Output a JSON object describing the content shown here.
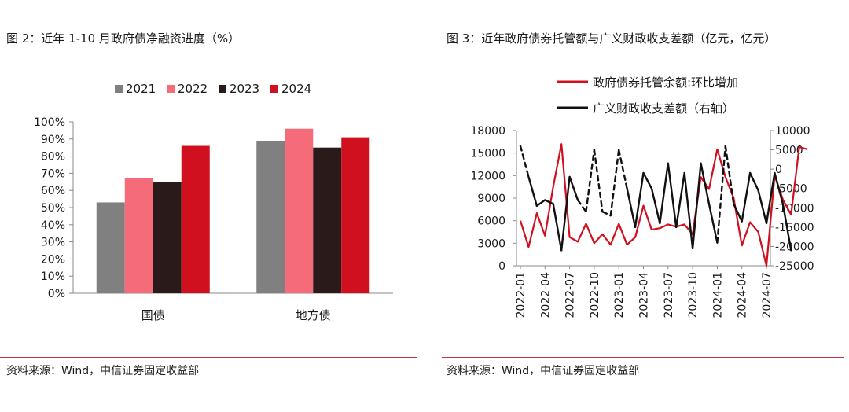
{
  "left": {
    "title": "图 2：近年 1-10 月政府债净融资进度（%）",
    "source": "资料来源：Wind，中信证券固定收益部",
    "chart_data": {
      "type": "bar",
      "categories": [
        "国债",
        "地方债"
      ],
      "series": [
        {
          "name": "2021",
          "color": "#808080",
          "values": [
            53,
            89
          ]
        },
        {
          "name": "2022",
          "color": "#f56b7a",
          "values": [
            67,
            96
          ]
        },
        {
          "name": "2023",
          "color": "#2b1a1a",
          "values": [
            65,
            85
          ]
        },
        {
          "name": "2024",
          "color": "#d0101e",
          "values": [
            86,
            91
          ]
        }
      ],
      "ylim": [
        0,
        100
      ],
      "yticks": [
        "0%",
        "10%",
        "20%",
        "30%",
        "40%",
        "50%",
        "60%",
        "70%",
        "80%",
        "90%",
        "100%"
      ],
      "legend_position": "top",
      "grid": false
    }
  },
  "right": {
    "title": "图 3：近年政府债券托管额与广义财政收支差额（亿元，亿元）",
    "source": "资料来源：Wind，中信证券固定收益部",
    "chart_data": {
      "type": "line",
      "x_labels": [
        "2022-01",
        "2022-04",
        "2022-07",
        "2022-10",
        "2023-01",
        "2023-04",
        "2023-07",
        "2023-10",
        "2024-01",
        "2024-04",
        "2024-07"
      ],
      "ylim_left": [
        0,
        18000
      ],
      "yticks_left": [
        "0",
        "3000",
        "6000",
        "9000",
        "12000",
        "15000",
        "18000"
      ],
      "ylim_right": [
        -25000,
        10000
      ],
      "yticks_right": [
        "-25000",
        "-20000",
        "-15000",
        "-10000",
        "-5000",
        "0",
        "5000",
        "10000"
      ],
      "legend_position": "top",
      "grid": false,
      "series": [
        {
          "name": "政府债券托管余额:环比增加",
          "color": "#d0101e",
          "axis": "left",
          "values": [
            6000,
            2500,
            7000,
            4000,
            10500,
            16200,
            3800,
            3200,
            5600,
            3000,
            4200,
            2800,
            5600,
            2800,
            3800,
            8000,
            4800,
            5000,
            5500,
            5200,
            5500,
            4200,
            11800,
            10200,
            15500,
            11800,
            9000,
            2700,
            5800,
            4500,
            0,
            12000,
            8800,
            6800,
            15800,
            15500
          ]
        },
        {
          "name": "广义财政收支差额（右轴）",
          "color": "#111111",
          "axis": "right",
          "values": [
            6000,
            -2000,
            -9500,
            -8000,
            -9000,
            -21000,
            -2000,
            -8000,
            -11000,
            5000,
            -11000,
            -12000,
            5000,
            -5000,
            -15000,
            -1000,
            -5000,
            -14000,
            1500,
            -15000,
            -1000,
            -20500,
            1500,
            -9000,
            -19000,
            6000,
            -9000,
            -13500,
            -1000,
            -5500,
            -14000,
            -1000,
            -9000,
            -21000
          ],
          "dashed_segments": [
            [
              0,
              1
            ],
            [
              7,
              13
            ],
            [
              24,
              26
            ]
          ]
        }
      ]
    }
  }
}
